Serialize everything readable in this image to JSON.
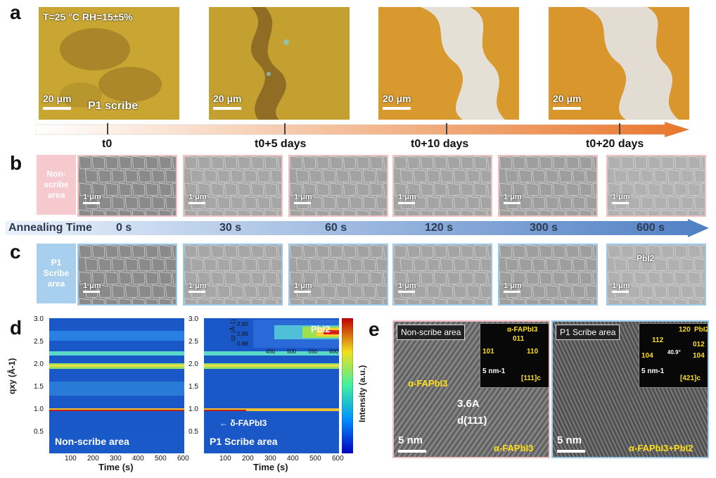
{
  "panels": {
    "a": "a",
    "b": "b",
    "c": "c",
    "d": "d",
    "e": "e"
  },
  "panel_a": {
    "condition": "T=25 °C RH=15±5%",
    "scale_bar": "20 μm",
    "scribe_label": "P1 scribe",
    "timeline": [
      "t0",
      "t0+5 days",
      "t0+10 days",
      "t0+20 days"
    ]
  },
  "panel_b": {
    "side_label": [
      "Non-",
      "scribe",
      "area"
    ],
    "scale_bar": "1 μm"
  },
  "annealing": {
    "title": "Annealing Time",
    "times": [
      "0 s",
      "30 s",
      "60 s",
      "120 s",
      "300 s",
      "600 s"
    ]
  },
  "panel_c": {
    "side_label": [
      "P1",
      "Scribe",
      "area"
    ],
    "scale_bar": "1 μm",
    "pbi2_label": "PbI2"
  },
  "panel_d": {
    "y_label": "qxy (Å-1)",
    "x_label": "Time (s)",
    "y_ticks": [
      "3.0",
      "2.5",
      "2.0",
      "1.5",
      "1.0",
      "0.5"
    ],
    "x_ticks": [
      "100",
      "200",
      "300",
      "400",
      "500",
      "600"
    ],
    "left_label": "Non-scribe area",
    "right_label": "P1 Scribe area",
    "delta_label": "δ-FAPbI3",
    "inset_y_label": "qz (Å-1)",
    "inset_y_ticks": [
      "0.90",
      "0.89",
      "0.88"
    ],
    "inset_x_ticks": [
      "450",
      "500",
      "550",
      "600"
    ],
    "inset_label": "PbI2",
    "colorbar_label": "Intensity (a.u.)"
  },
  "panel_e": {
    "left_title": "Non-scribe area",
    "right_title": "P1 Scribe area",
    "left_phase_top": "α-FAPbI3",
    "d_spacing": "3.6A",
    "plane": "d(111)",
    "scale_bar": "5 nm",
    "left_phase_bottom": "α-FAPbI3",
    "right_phase_bottom": "α-FAPbI3+PbI2",
    "left_fft": {
      "title": "α-FAPbI3",
      "spots": [
        "011",
        "101",
        "110"
      ],
      "zone": "[111]c",
      "scale": "5 nm-1"
    },
    "right_fft": {
      "phase": "PbI2",
      "spots": [
        "120",
        "112",
        "012",
        "104",
        "104"
      ],
      "angle": "40.9°",
      "zone": "[421]c",
      "scale": "5 nm-1"
    }
  },
  "colors": {
    "optical_gold": "#c8a830",
    "arrow_orange": "#e8762a",
    "arrow_blue": "#4f7fc4",
    "pink_border": "#f2bfc5",
    "blue_border": "#9cc8e8",
    "label_yellow": "#ffdf1a"
  }
}
